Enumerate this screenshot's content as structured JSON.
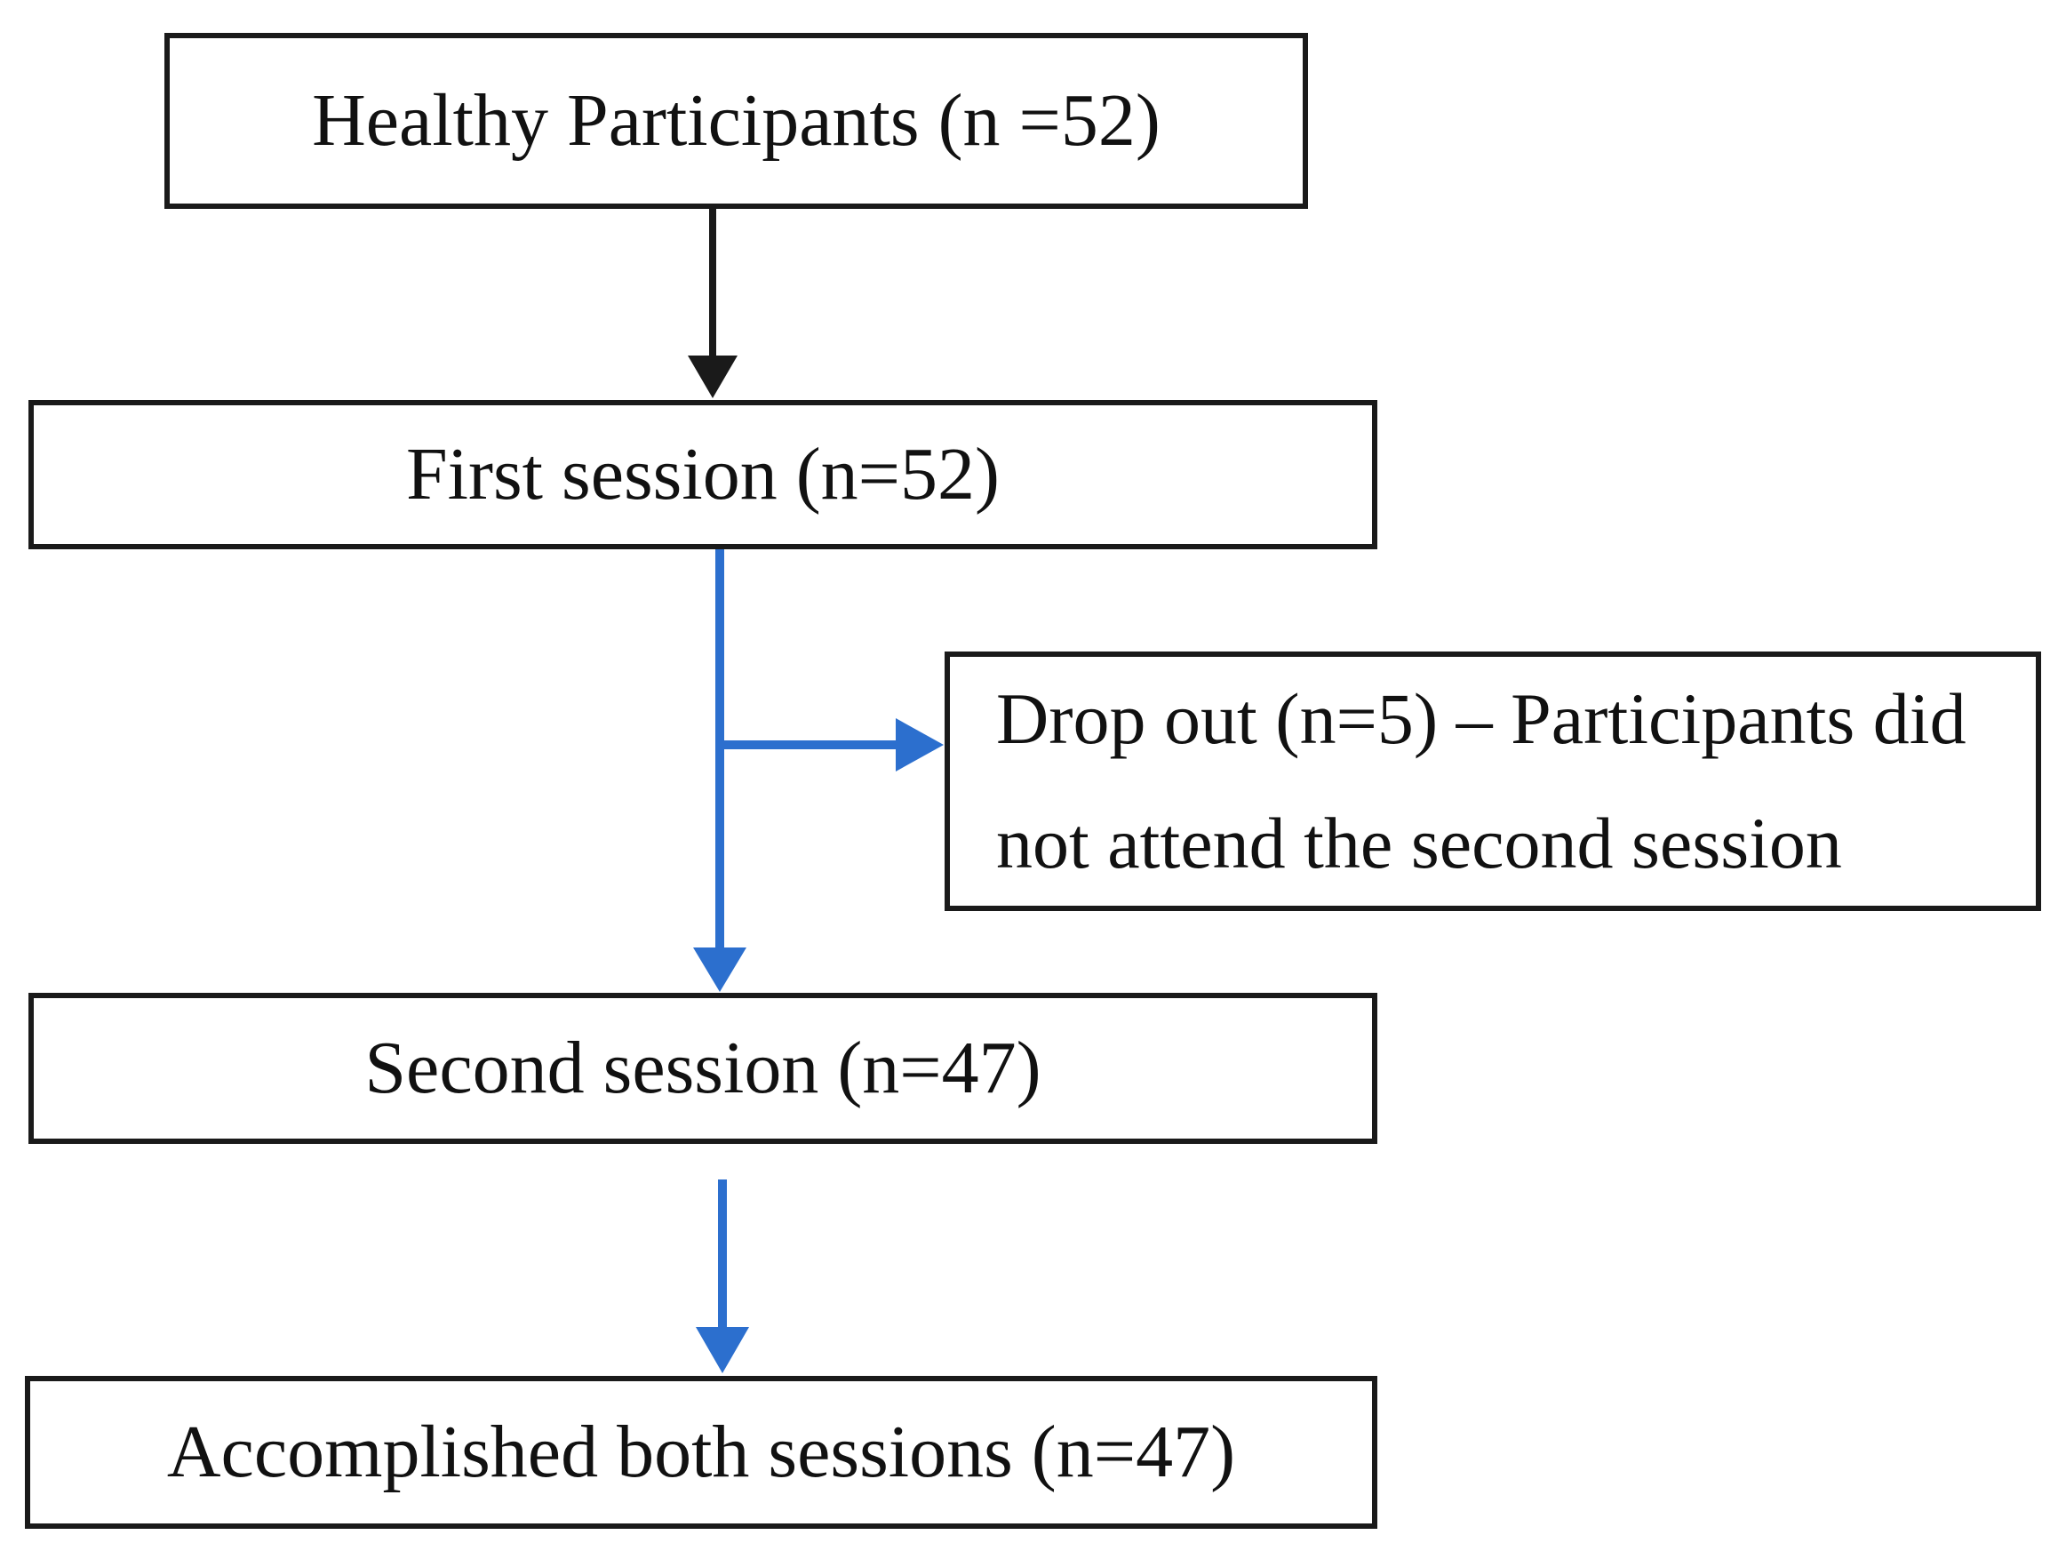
{
  "diagram": {
    "type": "participant-flowchart",
    "boxes": {
      "healthy": {
        "label": "Healthy Participants (n =52)"
      },
      "first_session": {
        "label": "First session (n=52)"
      },
      "drop_out": {
        "label": "Drop out (n=5) – Participants did not attend the second session",
        "lines": [
          "Drop out (n=5) – Participants did",
          "not attend the second session"
        ]
      },
      "second_session": {
        "label": "Second session (n=47)"
      },
      "accomplished": {
        "label": "Accomplished both sessions (n=47)"
      }
    },
    "counts": {
      "healthy_participants": 52,
      "first_session": 52,
      "drop_out": 5,
      "second_session": 47,
      "accomplished_both_sessions": 47
    },
    "colors": {
      "box_border": "#1a1a1a",
      "text": "#111111",
      "top_arrow": "#1a1a1a",
      "flow_arrow": "#2c6fce",
      "background": "#ffffff"
    }
  }
}
